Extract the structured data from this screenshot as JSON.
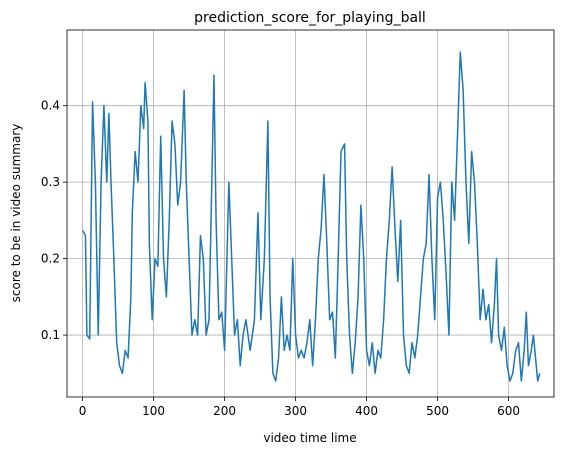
{
  "chart_data": {
    "type": "line",
    "title": "prediction_score_for_playing_ball",
    "x_label": "video time lime",
    "y_label": "score to be in video summary",
    "x": [
      0,
      4,
      6,
      10,
      14,
      18,
      22,
      26,
      28,
      30,
      34,
      37,
      40,
      44,
      48,
      52,
      56,
      60,
      64,
      68,
      70,
      74,
      78,
      82,
      86,
      88,
      92,
      94,
      98,
      102,
      106,
      110,
      114,
      118,
      122,
      126,
      130,
      134,
      138,
      143,
      146,
      150,
      154,
      158,
      162,
      166,
      170,
      174,
      178,
      182,
      185,
      188,
      192,
      196,
      200,
      206,
      210,
      214,
      218,
      222,
      226,
      230,
      236,
      242,
      247,
      251,
      256,
      261,
      264,
      268,
      272,
      276,
      280,
      284,
      288,
      292,
      296,
      300,
      304,
      308,
      312,
      316,
      320,
      324,
      328,
      332,
      336,
      340,
      344,
      348,
      352,
      356,
      360,
      364,
      369,
      372,
      376,
      380,
      384,
      388,
      392,
      396,
      400,
      404,
      408,
      412,
      416,
      420,
      424,
      428,
      432,
      436,
      440,
      444,
      448,
      452,
      456,
      460,
      464,
      468,
      472,
      476,
      480,
      484,
      488,
      492,
      496,
      500,
      504,
      508,
      512,
      516,
      520,
      524,
      528,
      532,
      536,
      540,
      544,
      548,
      552,
      556,
      560,
      564,
      568,
      572,
      576,
      580,
      583,
      586,
      590,
      594,
      598,
      602,
      606,
      610,
      614,
      618,
      622,
      625,
      628,
      632,
      635,
      638,
      641,
      644
    ],
    "series": [
      {
        "name": "prediction_score",
        "color": "#1f77b4",
        "values": [
          0.237,
          0.23,
          0.1,
          0.095,
          0.405,
          0.3,
          0.1,
          0.3,
          0.35,
          0.4,
          0.3,
          0.39,
          0.3,
          0.2,
          0.09,
          0.06,
          0.05,
          0.08,
          0.07,
          0.15,
          0.26,
          0.34,
          0.3,
          0.4,
          0.37,
          0.43,
          0.38,
          0.22,
          0.12,
          0.2,
          0.19,
          0.36,
          0.2,
          0.15,
          0.25,
          0.38,
          0.35,
          0.27,
          0.3,
          0.42,
          0.3,
          0.2,
          0.1,
          0.12,
          0.1,
          0.23,
          0.2,
          0.1,
          0.12,
          0.3,
          0.44,
          0.25,
          0.12,
          0.13,
          0.08,
          0.3,
          0.2,
          0.1,
          0.12,
          0.06,
          0.1,
          0.12,
          0.08,
          0.12,
          0.26,
          0.12,
          0.2,
          0.38,
          0.15,
          0.05,
          0.04,
          0.07,
          0.15,
          0.08,
          0.1,
          0.08,
          0.2,
          0.1,
          0.07,
          0.08,
          0.07,
          0.09,
          0.12,
          0.06,
          0.12,
          0.2,
          0.24,
          0.31,
          0.22,
          0.12,
          0.13,
          0.07,
          0.2,
          0.34,
          0.35,
          0.2,
          0.1,
          0.05,
          0.09,
          0.15,
          0.27,
          0.2,
          0.08,
          0.06,
          0.09,
          0.05,
          0.08,
          0.07,
          0.12,
          0.2,
          0.25,
          0.32,
          0.24,
          0.17,
          0.25,
          0.1,
          0.06,
          0.05,
          0.09,
          0.07,
          0.1,
          0.15,
          0.2,
          0.22,
          0.31,
          0.2,
          0.12,
          0.28,
          0.3,
          0.25,
          0.18,
          0.1,
          0.3,
          0.25,
          0.36,
          0.47,
          0.42,
          0.3,
          0.22,
          0.34,
          0.3,
          0.22,
          0.12,
          0.16,
          0.12,
          0.14,
          0.09,
          0.14,
          0.2,
          0.1,
          0.08,
          0.11,
          0.06,
          0.04,
          0.05,
          0.08,
          0.09,
          0.04,
          0.08,
          0.13,
          0.06,
          0.08,
          0.1,
          0.07,
          0.04,
          0.05
        ]
      }
    ],
    "xlim": [
      -22,
      664
    ],
    "ylim": [
      0.019,
      0.499
    ],
    "xticks": [
      0,
      100,
      200,
      300,
      400,
      500,
      600
    ],
    "yticks": [
      0.1,
      0.2,
      0.3,
      0.4
    ],
    "grid": true
  }
}
